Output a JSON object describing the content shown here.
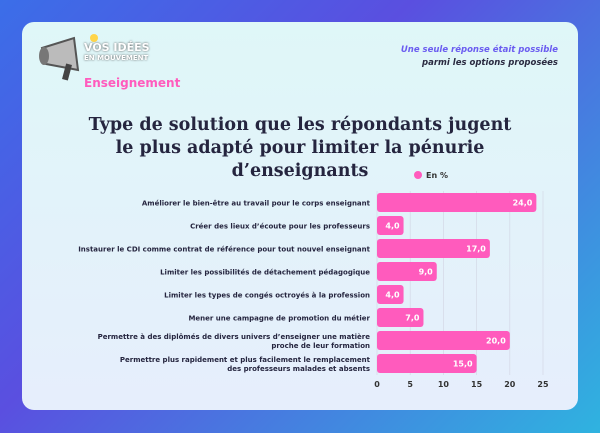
{
  "header": {
    "brand_top": "VOS IDÉES",
    "brand_sub": "EN MOUVEMENT",
    "brand_name": "Enseignement",
    "note_line1": "Une seule réponse était possible",
    "note_line2": "parmi les options proposées"
  },
  "chart_data": {
    "type": "bar",
    "orientation": "horizontal",
    "title": "Type de solution que les répondants jugent le plus adapté pour limiter la pénurie d’enseignants",
    "legend": "En %",
    "legend_position": "top",
    "bar_color": "#ff5bbd",
    "categories": [
      [
        "Améliorer le bien-être au travail pour le corps enseignant"
      ],
      [
        "Créer des lieux d’écoute pour les professeurs"
      ],
      [
        "Instaurer le CDI comme contrat de référence pour tout nouvel enseignant"
      ],
      [
        "Limiter les possibilités de détachement pédagogique"
      ],
      [
        "Limiter les types de congés octroyés à la profession"
      ],
      [
        "Mener une campagne de promotion du métier"
      ],
      [
        "Permettre à des diplômés de divers univers d’enseigner une matière",
        "proche de leur formation"
      ],
      [
        "Permettre plus rapidement et plus facilement le remplacement",
        "des professeurs malades et absents"
      ]
    ],
    "values": [
      24.0,
      4.0,
      17.0,
      9.0,
      4.0,
      7.0,
      20.0,
      15.0
    ],
    "value_labels": [
      "24,0",
      "4,0",
      "17,0",
      "9,0",
      "4,0",
      "7,0",
      "20,0",
      "15,0"
    ],
    "xlim": [
      0,
      25
    ],
    "xticks": [
      "0",
      "5",
      "10",
      "15",
      "20",
      "25"
    ],
    "grid": true
  }
}
